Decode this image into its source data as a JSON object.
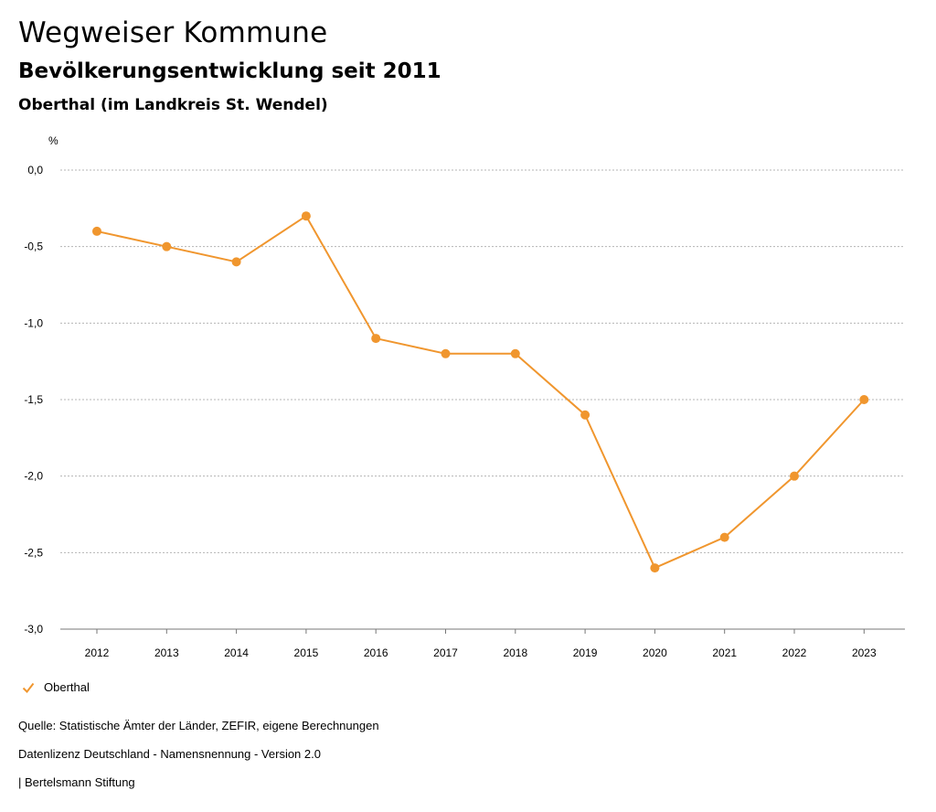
{
  "header": {
    "title": "Wegweiser Kommune",
    "subtitle": "Bevölkerungsentwicklung seit 2011",
    "region": "Oberthal (im Landkreis St. Wendel)"
  },
  "chart_data": {
    "type": "line",
    "title": "Bevölkerungsentwicklung seit 2011",
    "xlabel": "",
    "ylabel": "%",
    "ylim": [
      -3.0,
      0.0
    ],
    "yticks": [
      0.0,
      -0.5,
      -1.0,
      -1.5,
      -2.0,
      -2.5,
      -3.0
    ],
    "ytick_labels": [
      "0,0",
      "-0,5",
      "-1,0",
      "-1,5",
      "-2,0",
      "-2,5",
      "-3,0"
    ],
    "categories": [
      "2012",
      "2013",
      "2014",
      "2015",
      "2016",
      "2017",
      "2018",
      "2019",
      "2020",
      "2021",
      "2022",
      "2023"
    ],
    "series": [
      {
        "name": "Oberthal",
        "color": "#f0962e",
        "values": [
          -0.4,
          -0.5,
          -0.6,
          -0.3,
          -1.1,
          -1.2,
          -1.2,
          -1.6,
          -2.6,
          -2.4,
          -2.0,
          -1.5
        ]
      }
    ],
    "grid": true,
    "legend_position": "bottom-left"
  },
  "legend": {
    "label": "Oberthal",
    "icon": "checkmark-icon",
    "color": "#f0962e"
  },
  "footer": {
    "source": "Quelle: Statistische Ämter der Länder, ZEFIR, eigene Berechnungen",
    "license": "Datenlizenz Deutschland - Namensnennung - Version 2.0",
    "publisher": "| Bertelsmann Stiftung"
  }
}
